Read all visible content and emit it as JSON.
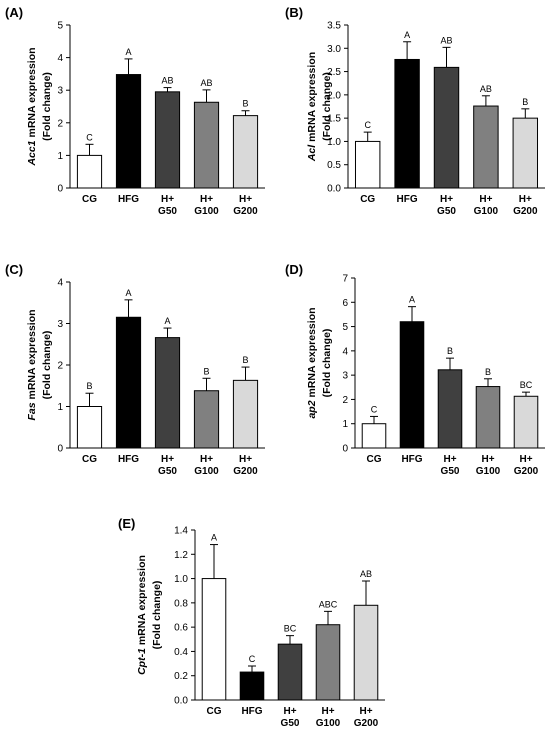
{
  "chart_data": [
    {
      "type": "bar",
      "panel": "(A)",
      "ylabel": {
        "gene": "Acc1",
        "rest": " mRNA expression",
        "line2": "(Fold change)"
      },
      "categories": [
        [
          "CG"
        ],
        [
          "HFG"
        ],
        [
          "H+",
          "G50"
        ],
        [
          "H+",
          "G100"
        ],
        [
          "H+",
          "G200"
        ]
      ],
      "values": [
        1.0,
        3.48,
        2.95,
        2.63,
        2.22
      ],
      "errors": [
        0.34,
        0.48,
        0.13,
        0.38,
        0.15
      ],
      "letters": [
        "C",
        "A",
        "AB",
        "AB",
        "B"
      ],
      "ylim": [
        0,
        5
      ],
      "yticks": [
        "0",
        "1",
        "2",
        "3",
        "4",
        "5"
      ]
    },
    {
      "type": "bar",
      "panel": "(B)",
      "ylabel": {
        "gene": "Acl",
        "rest": " mRNA expression",
        "line2": "(Fold change)"
      },
      "categories": [
        [
          "CG"
        ],
        [
          "HFG"
        ],
        [
          "H+",
          "G50"
        ],
        [
          "H+",
          "G100"
        ],
        [
          "H+",
          "G200"
        ]
      ],
      "values": [
        1.0,
        2.76,
        2.59,
        1.76,
        1.5
      ],
      "errors": [
        0.2,
        0.38,
        0.43,
        0.22,
        0.2
      ],
      "letters": [
        "C",
        "A",
        "AB",
        "AB",
        "B"
      ],
      "ylim": [
        0,
        3.5
      ],
      "yticks": [
        "0.0",
        "0.5",
        "1.0",
        "1.5",
        "2.0",
        "2.5",
        "3.0",
        "3.5"
      ]
    },
    {
      "type": "bar",
      "panel": "(C)",
      "ylabel": {
        "gene": "Fas",
        "rest": " mRNA expression",
        "line2": "(Fold change)"
      },
      "categories": [
        [
          "CG"
        ],
        [
          "HFG"
        ],
        [
          "H+",
          "G50"
        ],
        [
          "H+",
          "G100"
        ],
        [
          "H+",
          "G200"
        ]
      ],
      "values": [
        1.0,
        3.15,
        2.66,
        1.38,
        1.63
      ],
      "errors": [
        0.32,
        0.42,
        0.23,
        0.3,
        0.32
      ],
      "letters": [
        "B",
        "A",
        "A",
        "B",
        "B"
      ],
      "ylim": [
        0,
        4
      ],
      "yticks": [
        "0",
        "1",
        "2",
        "3",
        "4"
      ]
    },
    {
      "type": "bar",
      "panel": "(D)",
      "ylabel": {
        "gene": "ap2",
        "rest": " mRNA expression",
        "line2": "(Fold change)"
      },
      "categories": [
        [
          "CG"
        ],
        [
          "HFG"
        ],
        [
          "H+",
          "G50"
        ],
        [
          "H+",
          "G100"
        ],
        [
          "H+",
          "G200"
        ]
      ],
      "values": [
        1.0,
        5.2,
        3.22,
        2.53,
        2.13
      ],
      "errors": [
        0.3,
        0.62,
        0.48,
        0.32,
        0.17
      ],
      "letters": [
        "C",
        "A",
        "B",
        "B",
        "BC"
      ],
      "ylim": [
        0,
        7
      ],
      "yticks": [
        "0",
        "1",
        "2",
        "3",
        "4",
        "5",
        "6",
        "7"
      ]
    },
    {
      "type": "bar",
      "panel": "(E)",
      "ylabel": {
        "gene": "Cpt-1",
        "rest": " mRNA expression",
        "line2": "(Fold change)"
      },
      "categories": [
        [
          "CG"
        ],
        [
          "HFG"
        ],
        [
          "H+",
          "G50"
        ],
        [
          "H+",
          "G100"
        ],
        [
          "H+",
          "G200"
        ]
      ],
      "values": [
        1.0,
        0.23,
        0.46,
        0.62,
        0.78
      ],
      "errors": [
        0.28,
        0.05,
        0.07,
        0.11,
        0.2
      ],
      "letters": [
        "A",
        "C",
        "BC",
        "ABC",
        "AB"
      ],
      "ylim": [
        0,
        1.4
      ],
      "yticks": [
        "0.0",
        "0.2",
        "0.4",
        "0.6",
        "0.8",
        "1.0",
        "1.2",
        "1.4"
      ]
    }
  ],
  "bar_colors": [
    "#ffffff",
    "#000000",
    "#404040",
    "#808080",
    "#d9d9d9"
  ]
}
